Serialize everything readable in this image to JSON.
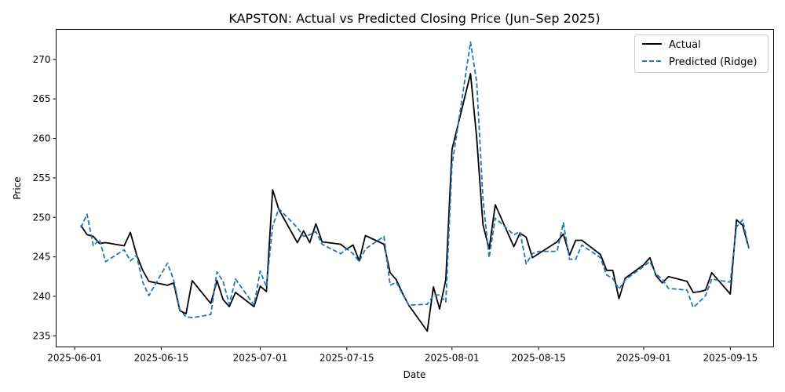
{
  "chart_data": {
    "type": "line",
    "title": "KAPSTON: Actual vs Predicted Closing Price (Jun–Sep 2025)",
    "xlabel": "Date",
    "ylabel": "Price",
    "xlim": [
      "2025-05-29",
      "2025-09-22"
    ],
    "ylim": [
      233.6,
      273.8
    ],
    "yticks": [
      235,
      240,
      245,
      250,
      255,
      260,
      265,
      270
    ],
    "xticks": [
      "2025-06-01",
      "2025-06-15",
      "2025-07-01",
      "2025-07-15",
      "2025-08-01",
      "2025-08-15",
      "2025-09-01",
      "2025-09-15"
    ],
    "grid": false,
    "legend_position": "top-right",
    "series": [
      {
        "name": "Actual",
        "color": "#000000",
        "style": "solid",
        "points": [
          [
            "2025-06-02",
            249.0
          ],
          [
            "2025-06-03",
            247.8
          ],
          [
            "2025-06-04",
            247.6
          ],
          [
            "2025-06-05",
            246.7
          ],
          [
            "2025-06-06",
            246.8
          ],
          [
            "2025-06-09",
            246.4
          ],
          [
            "2025-06-10",
            248.1
          ],
          [
            "2025-06-11",
            245.3
          ],
          [
            "2025-06-12",
            243.3
          ],
          [
            "2025-06-13",
            241.9
          ],
          [
            "2025-06-16",
            241.4
          ],
          [
            "2025-06-17",
            241.7
          ],
          [
            "2025-06-18",
            238.2
          ],
          [
            "2025-06-19",
            237.8
          ],
          [
            "2025-06-20",
            242.0
          ],
          [
            "2025-06-23",
            239.1
          ],
          [
            "2025-06-24",
            242.0
          ],
          [
            "2025-06-25",
            239.6
          ],
          [
            "2025-06-26",
            238.7
          ],
          [
            "2025-06-27",
            240.5
          ],
          [
            "2025-06-30",
            238.7
          ],
          [
            "2025-07-01",
            241.3
          ],
          [
            "2025-07-02",
            240.6
          ],
          [
            "2025-07-03",
            253.5
          ],
          [
            "2025-07-04",
            251.0
          ],
          [
            "2025-07-07",
            246.8
          ],
          [
            "2025-07-08",
            248.3
          ],
          [
            "2025-07-09",
            246.8
          ],
          [
            "2025-07-10",
            249.2
          ],
          [
            "2025-07-11",
            246.9
          ],
          [
            "2025-07-14",
            246.6
          ],
          [
            "2025-07-15",
            246.0
          ],
          [
            "2025-07-16",
            246.5
          ],
          [
            "2025-07-17",
            244.5
          ],
          [
            "2025-07-18",
            247.7
          ],
          [
            "2025-07-21",
            246.6
          ],
          [
            "2025-07-22",
            243.0
          ],
          [
            "2025-07-23",
            242.1
          ],
          [
            "2025-07-24",
            240.4
          ],
          [
            "2025-07-25",
            238.9
          ],
          [
            "2025-07-28",
            235.6
          ],
          [
            "2025-07-29",
            241.2
          ],
          [
            "2025-07-30",
            238.4
          ],
          [
            "2025-07-31",
            242.1
          ],
          [
            "2025-08-01",
            258.6
          ],
          [
            "2025-08-04",
            268.2
          ],
          [
            "2025-08-05",
            260.0
          ],
          [
            "2025-08-06",
            249.1
          ],
          [
            "2025-08-07",
            246.0
          ],
          [
            "2025-08-08",
            251.6
          ],
          [
            "2025-08-11",
            246.3
          ],
          [
            "2025-08-12",
            248.0
          ],
          [
            "2025-08-13",
            247.5
          ],
          [
            "2025-08-14",
            244.9
          ],
          [
            "2025-08-15",
            245.4
          ],
          [
            "2025-08-18",
            246.9
          ],
          [
            "2025-08-19",
            247.9
          ],
          [
            "2025-08-20",
            245.2
          ],
          [
            "2025-08-21",
            247.1
          ],
          [
            "2025-08-22",
            247.1
          ],
          [
            "2025-08-25",
            245.3
          ],
          [
            "2025-08-26",
            243.3
          ],
          [
            "2025-08-27",
            243.3
          ],
          [
            "2025-08-28",
            239.7
          ],
          [
            "2025-08-29",
            242.3
          ],
          [
            "2025-09-01",
            244.0
          ],
          [
            "2025-09-02",
            244.9
          ],
          [
            "2025-09-03",
            242.6
          ],
          [
            "2025-09-04",
            241.7
          ],
          [
            "2025-09-05",
            242.5
          ],
          [
            "2025-09-08",
            241.9
          ],
          [
            "2025-09-09",
            240.5
          ],
          [
            "2025-09-10",
            240.6
          ],
          [
            "2025-09-11",
            240.8
          ],
          [
            "2025-09-12",
            243.0
          ],
          [
            "2025-09-15",
            240.3
          ],
          [
            "2025-09-16",
            249.7
          ],
          [
            "2025-09-17",
            249.0
          ],
          [
            "2025-09-18",
            246.1
          ]
        ]
      },
      {
        "name": "Predicted (Ridge)",
        "color": "#1f77b4",
        "style": "dashed",
        "points": [
          [
            "2025-06-02",
            248.7
          ],
          [
            "2025-06-03",
            250.4
          ],
          [
            "2025-06-04",
            246.4
          ],
          [
            "2025-06-05",
            247.2
          ],
          [
            "2025-06-06",
            244.4
          ],
          [
            "2025-06-09",
            245.9
          ],
          [
            "2025-06-10",
            244.5
          ],
          [
            "2025-06-11",
            245.2
          ],
          [
            "2025-06-12",
            241.8
          ],
          [
            "2025-06-13",
            240.1
          ],
          [
            "2025-06-16",
            244.2
          ],
          [
            "2025-06-17",
            242.1
          ],
          [
            "2025-06-18",
            238.3
          ],
          [
            "2025-06-19",
            237.4
          ],
          [
            "2025-06-20",
            237.3
          ],
          [
            "2025-06-23",
            237.7
          ],
          [
            "2025-06-24",
            243.1
          ],
          [
            "2025-06-25",
            241.9
          ],
          [
            "2025-06-26",
            239.0
          ],
          [
            "2025-06-27",
            242.2
          ],
          [
            "2025-06-30",
            238.9
          ],
          [
            "2025-07-01",
            243.2
          ],
          [
            "2025-07-02",
            241.2
          ],
          [
            "2025-07-03",
            248.9
          ],
          [
            "2025-07-04",
            251.1
          ],
          [
            "2025-07-07",
            248.7
          ],
          [
            "2025-07-08",
            247.6
          ],
          [
            "2025-07-09",
            247.8
          ],
          [
            "2025-07-10",
            248.2
          ],
          [
            "2025-07-11",
            246.6
          ],
          [
            "2025-07-14",
            245.4
          ],
          [
            "2025-07-15",
            246.0
          ],
          [
            "2025-07-16",
            245.4
          ],
          [
            "2025-07-17",
            244.4
          ],
          [
            "2025-07-18",
            246.0
          ],
          [
            "2025-07-21",
            247.6
          ],
          [
            "2025-07-22",
            241.4
          ],
          [
            "2025-07-23",
            241.8
          ],
          [
            "2025-07-24",
            240.3
          ],
          [
            "2025-07-25",
            238.9
          ],
          [
            "2025-07-28",
            239.0
          ],
          [
            "2025-07-29",
            240.1
          ],
          [
            "2025-07-30",
            240.2
          ],
          [
            "2025-07-31",
            239.3
          ],
          [
            "2025-08-01",
            256.6
          ],
          [
            "2025-08-04",
            272.2
          ],
          [
            "2025-08-05",
            267.1
          ],
          [
            "2025-08-06",
            252.4
          ],
          [
            "2025-08-07",
            244.9
          ],
          [
            "2025-08-08",
            249.9
          ],
          [
            "2025-08-11",
            247.8
          ],
          [
            "2025-08-12",
            248.2
          ],
          [
            "2025-08-13",
            244.1
          ],
          [
            "2025-08-14",
            245.4
          ],
          [
            "2025-08-15",
            245.7
          ],
          [
            "2025-08-18",
            245.7
          ],
          [
            "2025-08-19",
            249.3
          ],
          [
            "2025-08-20",
            244.7
          ],
          [
            "2025-08-21",
            244.7
          ],
          [
            "2025-08-22",
            246.5
          ],
          [
            "2025-08-25",
            244.9
          ],
          [
            "2025-08-26",
            242.7
          ],
          [
            "2025-08-27",
            242.3
          ],
          [
            "2025-08-28",
            240.9
          ],
          [
            "2025-08-29",
            242.1
          ],
          [
            "2025-09-01",
            243.8
          ],
          [
            "2025-09-02",
            244.4
          ],
          [
            "2025-09-03",
            242.8
          ],
          [
            "2025-09-04",
            242.2
          ],
          [
            "2025-09-05",
            241.0
          ],
          [
            "2025-09-08",
            240.8
          ],
          [
            "2025-09-09",
            238.6
          ],
          [
            "2025-09-10",
            239.3
          ],
          [
            "2025-09-11",
            240.1
          ],
          [
            "2025-09-12",
            242.2
          ],
          [
            "2025-09-15",
            241.8
          ],
          [
            "2025-09-16",
            248.8
          ],
          [
            "2025-09-17",
            249.7
          ],
          [
            "2025-09-18",
            246.0
          ]
        ]
      }
    ]
  }
}
